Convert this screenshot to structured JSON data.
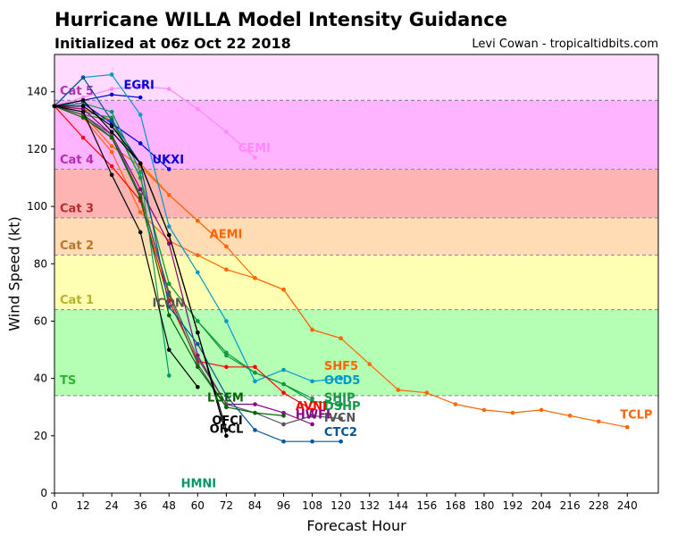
{
  "header": {
    "title": "Hurricane WILLA Model Intensity Guidance",
    "subtitle": "Initialized at 06z Oct 22 2018",
    "credit": "Levi Cowan - tropicaltidbits.com"
  },
  "chart_data": {
    "type": "line",
    "title": "Hurricane WILLA Model Intensity Guidance",
    "subtitle": "Initialized at 06z Oct 22 2018",
    "xlabel": "Forecast Hour",
    "ylabel": "Wind Speed (kt)",
    "xlim": [
      0,
      253
    ],
    "ylim": [
      0,
      153
    ],
    "x_ticks": [
      0,
      12,
      24,
      36,
      48,
      60,
      72,
      84,
      96,
      108,
      120,
      132,
      144,
      156,
      168,
      180,
      192,
      204,
      216,
      228,
      240
    ],
    "y_ticks": [
      0,
      20,
      40,
      60,
      80,
      100,
      120,
      140
    ],
    "categories": [
      {
        "label": "TS",
        "low": 34,
        "high": 64,
        "fill": "#b4ffb4",
        "text_color": "#2db52d",
        "label_y": 38
      },
      {
        "label": "Cat 1",
        "low": 64,
        "high": 83,
        "fill": "#ffffb4",
        "text_color": "#b4b42d",
        "label_y": 66
      },
      {
        "label": "Cat 2",
        "low": 83,
        "high": 96,
        "fill": "#ffdcb4",
        "text_color": "#b4782d",
        "label_y": 85
      },
      {
        "label": "Cat 3",
        "low": 96,
        "high": 113,
        "fill": "#ffb4b4",
        "text_color": "#b42d2d",
        "label_y": 98
      },
      {
        "label": "Cat 4",
        "low": 113,
        "high": 137,
        "fill": "#ffb4ff",
        "text_color": "#b42db4",
        "label_y": 115
      },
      {
        "label": "Cat 5",
        "low": 137,
        "high": 153,
        "fill": "#ffdcff",
        "text_color": "#b42db4",
        "label_y": 139
      }
    ],
    "series": [
      {
        "name": "TCLP",
        "color": "#ff6600",
        "x": [
          0,
          12,
          24,
          36,
          48,
          60,
          72,
          84,
          96,
          108,
          120,
          132,
          144,
          156,
          168,
          180,
          192,
          204,
          216,
          228,
          240
        ],
        "y": [
          135,
          132,
          121,
          114,
          104,
          95,
          86,
          75,
          71,
          57,
          54,
          45,
          36,
          35,
          31,
          29,
          28,
          29,
          27,
          25,
          23
        ],
        "label_x": 237,
        "label_y": 26
      },
      {
        "name": "SHF5",
        "color": "#ff6600",
        "x": [
          0,
          12,
          24,
          36,
          48,
          60,
          72,
          84,
          96,
          108,
          120
        ],
        "y": [
          135,
          131,
          119,
          98,
          88,
          83,
          78,
          75,
          71,
          57,
          54
        ],
        "label_x": 113,
        "label_y": 43
      },
      {
        "name": "AEMI",
        "color": "#ff6600",
        "x": [
          0,
          12,
          24,
          36,
          48,
          60,
          72
        ],
        "y": [
          135,
          134,
          130,
          115,
          104,
          95,
          86
        ],
        "label_x": 65,
        "label_y": 89
      },
      {
        "name": "CEMI",
        "color": "#ff88ff",
        "x": [
          0,
          12,
          24,
          36,
          48,
          60,
          72,
          84
        ],
        "y": [
          135,
          138,
          141,
          142,
          141,
          134,
          126,
          117
        ],
        "label_x": 77,
        "label_y": 119
      },
      {
        "name": "EGRI",
        "color": "#0000dd",
        "x": [
          0,
          12,
          24,
          36
        ],
        "y": [
          135,
          137,
          139,
          138
        ],
        "label_x": 29,
        "label_y": 141
      },
      {
        "name": "UKXI",
        "color": "#0000dd",
        "x": [
          0,
          12,
          24,
          36,
          48
        ],
        "y": [
          135,
          136,
          129,
          122,
          113
        ],
        "label_x": 41,
        "label_y": 115
      },
      {
        "name": "OCD5",
        "color": "#0099cc",
        "x": [
          0,
          12,
          24,
          36,
          48,
          60,
          72,
          84,
          96,
          108,
          120
        ],
        "y": [
          135,
          145,
          146,
          132,
          93,
          77,
          60,
          39,
          43,
          39,
          40
        ],
        "label_x": 113,
        "label_y": 38
      },
      {
        "name": "SHIP",
        "color": "#119944",
        "x": [
          0,
          12,
          24,
          36,
          48,
          60,
          72,
          84,
          96,
          108
        ],
        "y": [
          135,
          133,
          131,
          110,
          73,
          60,
          48,
          42,
          38,
          33
        ],
        "label_x": 113,
        "label_y": 32
      },
      {
        "name": "DSHP",
        "color": "#119944",
        "x": [
          0,
          12,
          24,
          36,
          48,
          60,
          72,
          84,
          96,
          108,
          120
        ],
        "y": [
          135,
          132,
          130,
          110,
          73,
          60,
          49,
          42,
          38,
          32,
          31
        ],
        "label_x": 113,
        "label_y": 29
      },
      {
        "name": "AVNI",
        "color": "#ff0000",
        "x": [
          0,
          12,
          24,
          36,
          48,
          60,
          72,
          84,
          96,
          108
        ],
        "y": [
          135,
          124,
          114,
          102,
          67,
          46,
          44,
          44,
          35,
          29
        ],
        "label_x": 101,
        "label_y": 29
      },
      {
        "name": "HWFI",
        "color": "#880088",
        "x": [
          0,
          12,
          24,
          36,
          48,
          60,
          72,
          84,
          96,
          108
        ],
        "y": [
          135,
          134,
          125,
          106,
          87,
          48,
          31,
          31,
          28,
          24
        ],
        "label_x": 101,
        "label_y": 26
      },
      {
        "name": "IVCN",
        "color": "#555555",
        "x": [
          0,
          12,
          24,
          36,
          48,
          60,
          72,
          84,
          96,
          108,
          120
        ],
        "y": [
          135,
          132,
          124,
          104,
          70,
          47,
          31,
          28,
          24,
          27,
          26
        ],
        "label_x": 113,
        "label_y": 25
      },
      {
        "name": "CTC2",
        "color": "#005599",
        "x": [
          0,
          12,
          24,
          36,
          48,
          60,
          72,
          84,
          96,
          108,
          120
        ],
        "y": [
          135,
          145,
          130,
          115,
          65,
          52,
          34,
          22,
          18,
          18,
          18
        ],
        "label_x": 113,
        "label_y": 20
      },
      {
        "name": "ICON",
        "color": "#555555",
        "x": [
          0,
          12,
          24,
          36,
          48,
          60,
          72
        ],
        "y": [
          135,
          132,
          125,
          104,
          69,
          45,
          30
        ],
        "label_x": 41,
        "label_y": 65
      },
      {
        "name": "LGEM",
        "color": "#006600",
        "x": [
          0,
          12,
          24,
          36,
          48,
          60,
          72,
          84,
          96
        ],
        "y": [
          135,
          131,
          124,
          103,
          62,
          44,
          30,
          28,
          27
        ],
        "label_x": 64,
        "label_y": 32
      },
      {
        "name": "HMNI",
        "color": "#009966",
        "x": [
          0,
          12,
          24,
          36,
          48
        ],
        "y": [
          135,
          136,
          133,
          112,
          41
        ],
        "label_x": 53,
        "label_y": 2
      },
      {
        "name": "OFCI",
        "color": "#000000",
        "x": [
          0,
          12,
          24,
          36,
          48,
          60,
          72
        ],
        "y": [
          135,
          137,
          126,
          115,
          90,
          56,
          22
        ],
        "label_x": 66,
        "label_y": 24
      },
      {
        "name": "OFCL",
        "color": "#000000",
        "x": [
          0,
          12,
          24,
          36,
          48,
          60,
          72
        ],
        "y": [
          135,
          135,
          128,
          115,
          90,
          56,
          20
        ],
        "label_x": 65,
        "label_y": 21
      },
      {
        "name": "",
        "color": "#000000",
        "x": [
          0,
          12,
          24,
          36,
          48,
          60
        ],
        "y": [
          135,
          133,
          111,
          91,
          50,
          37
        ],
        "label_x": 0,
        "label_y": 0
      }
    ]
  }
}
